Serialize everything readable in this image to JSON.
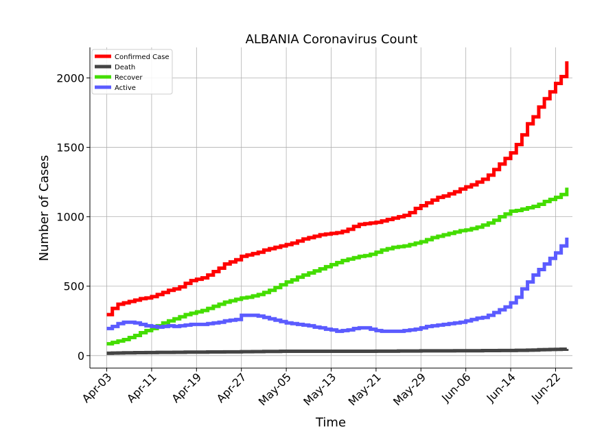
{
  "chart_data": {
    "type": "line",
    "title": "ALBANIA Coronavirus Count",
    "xlabel": "Time",
    "ylabel": "Number of Cases",
    "x_start": "2020-04-03",
    "x_end": "2020-06-23",
    "xlim": [
      "2020-03-31",
      "2020-06-25"
    ],
    "ylim": [
      -90,
      2220
    ],
    "y_ticks": [
      0,
      500,
      1000,
      1500,
      2000
    ],
    "x_ticks": [
      {
        "label": "Apr-03",
        "date": "2020-04-03"
      },
      {
        "label": "Apr-11",
        "date": "2020-04-11"
      },
      {
        "label": "Apr-19",
        "date": "2020-04-19"
      },
      {
        "label": "Apr-27",
        "date": "2020-04-27"
      },
      {
        "label": "May-05",
        "date": "2020-05-05"
      },
      {
        "label": "May-13",
        "date": "2020-05-13"
      },
      {
        "label": "May-21",
        "date": "2020-05-21"
      },
      {
        "label": "May-29",
        "date": "2020-05-29"
      },
      {
        "label": "Jun-06",
        "date": "2020-06-06"
      },
      {
        "label": "Jun-14",
        "date": "2020-06-14"
      },
      {
        "label": "Jun-22",
        "date": "2020-06-22"
      }
    ],
    "grid": true,
    "legend_position": "top-left",
    "series": [
      {
        "name": "Confirmed Case",
        "color": "#ff0000",
        "values": [
          295,
          340,
          370,
          380,
          390,
          400,
          410,
          415,
          425,
          440,
          455,
          470,
          480,
          495,
          520,
          540,
          550,
          560,
          580,
          605,
          630,
          660,
          675,
          690,
          715,
          725,
          735,
          745,
          760,
          770,
          780,
          790,
          800,
          810,
          825,
          840,
          850,
          860,
          870,
          875,
          880,
          885,
          895,
          910,
          930,
          945,
          950,
          955,
          960,
          970,
          980,
          990,
          1000,
          1010,
          1030,
          1060,
          1080,
          1100,
          1120,
          1140,
          1150,
          1165,
          1180,
          1200,
          1215,
          1230,
          1250,
          1270,
          1300,
          1340,
          1380,
          1420,
          1460,
          1520,
          1590,
          1670,
          1720,
          1790,
          1850,
          1900,
          1960,
          2010,
          2120
        ]
      },
      {
        "name": "Death",
        "color": "#444444",
        "values": [
          17,
          18,
          19,
          20,
          20,
          21,
          21,
          22,
          22,
          23,
          23,
          23,
          24,
          24,
          25,
          25,
          25,
          25,
          26,
          26,
          26,
          27,
          27,
          27,
          28,
          28,
          29,
          29,
          30,
          30,
          30,
          31,
          31,
          31,
          31,
          31,
          31,
          31,
          31,
          31,
          31,
          31,
          31,
          31,
          31,
          31,
          31,
          31,
          32,
          32,
          32,
          32,
          33,
          33,
          33,
          33,
          34,
          34,
          34,
          34,
          34,
          34,
          35,
          35,
          35,
          35,
          35,
          36,
          36,
          36,
          37,
          37,
          37,
          38,
          38,
          39,
          40,
          42,
          43,
          44,
          45,
          46,
          48
        ]
      },
      {
        "name": "Recover",
        "color": "#44dd00",
        "values": [
          85,
          95,
          105,
          115,
          130,
          145,
          165,
          180,
          195,
          215,
          235,
          250,
          265,
          280,
          295,
          305,
          315,
          325,
          340,
          355,
          370,
          385,
          395,
          405,
          415,
          420,
          430,
          440,
          455,
          470,
          490,
          510,
          530,
          545,
          565,
          580,
          595,
          610,
          625,
          640,
          655,
          670,
          685,
          695,
          705,
          715,
          720,
          730,
          745,
          760,
          770,
          780,
          785,
          790,
          800,
          810,
          820,
          835,
          850,
          860,
          870,
          880,
          890,
          900,
          905,
          915,
          925,
          940,
          955,
          975,
          1000,
          1020,
          1040,
          1045,
          1055,
          1065,
          1075,
          1090,
          1110,
          1125,
          1140,
          1160,
          1210
        ]
      },
      {
        "name": "Active",
        "color": "#5b5bff",
        "values": [
          195,
          210,
          230,
          240,
          240,
          235,
          225,
          215,
          210,
          205,
          210,
          215,
          210,
          215,
          220,
          225,
          225,
          225,
          230,
          235,
          240,
          250,
          255,
          260,
          290,
          290,
          290,
          285,
          275,
          265,
          255,
          245,
          235,
          230,
          225,
          220,
          215,
          205,
          200,
          190,
          185,
          175,
          180,
          185,
          195,
          200,
          200,
          190,
          180,
          175,
          175,
          175,
          175,
          180,
          185,
          190,
          200,
          210,
          215,
          220,
          225,
          230,
          235,
          240,
          250,
          260,
          270,
          275,
          290,
          310,
          330,
          350,
          380,
          420,
          480,
          530,
          580,
          620,
          660,
          700,
          740,
          790,
          850
        ]
      }
    ]
  }
}
